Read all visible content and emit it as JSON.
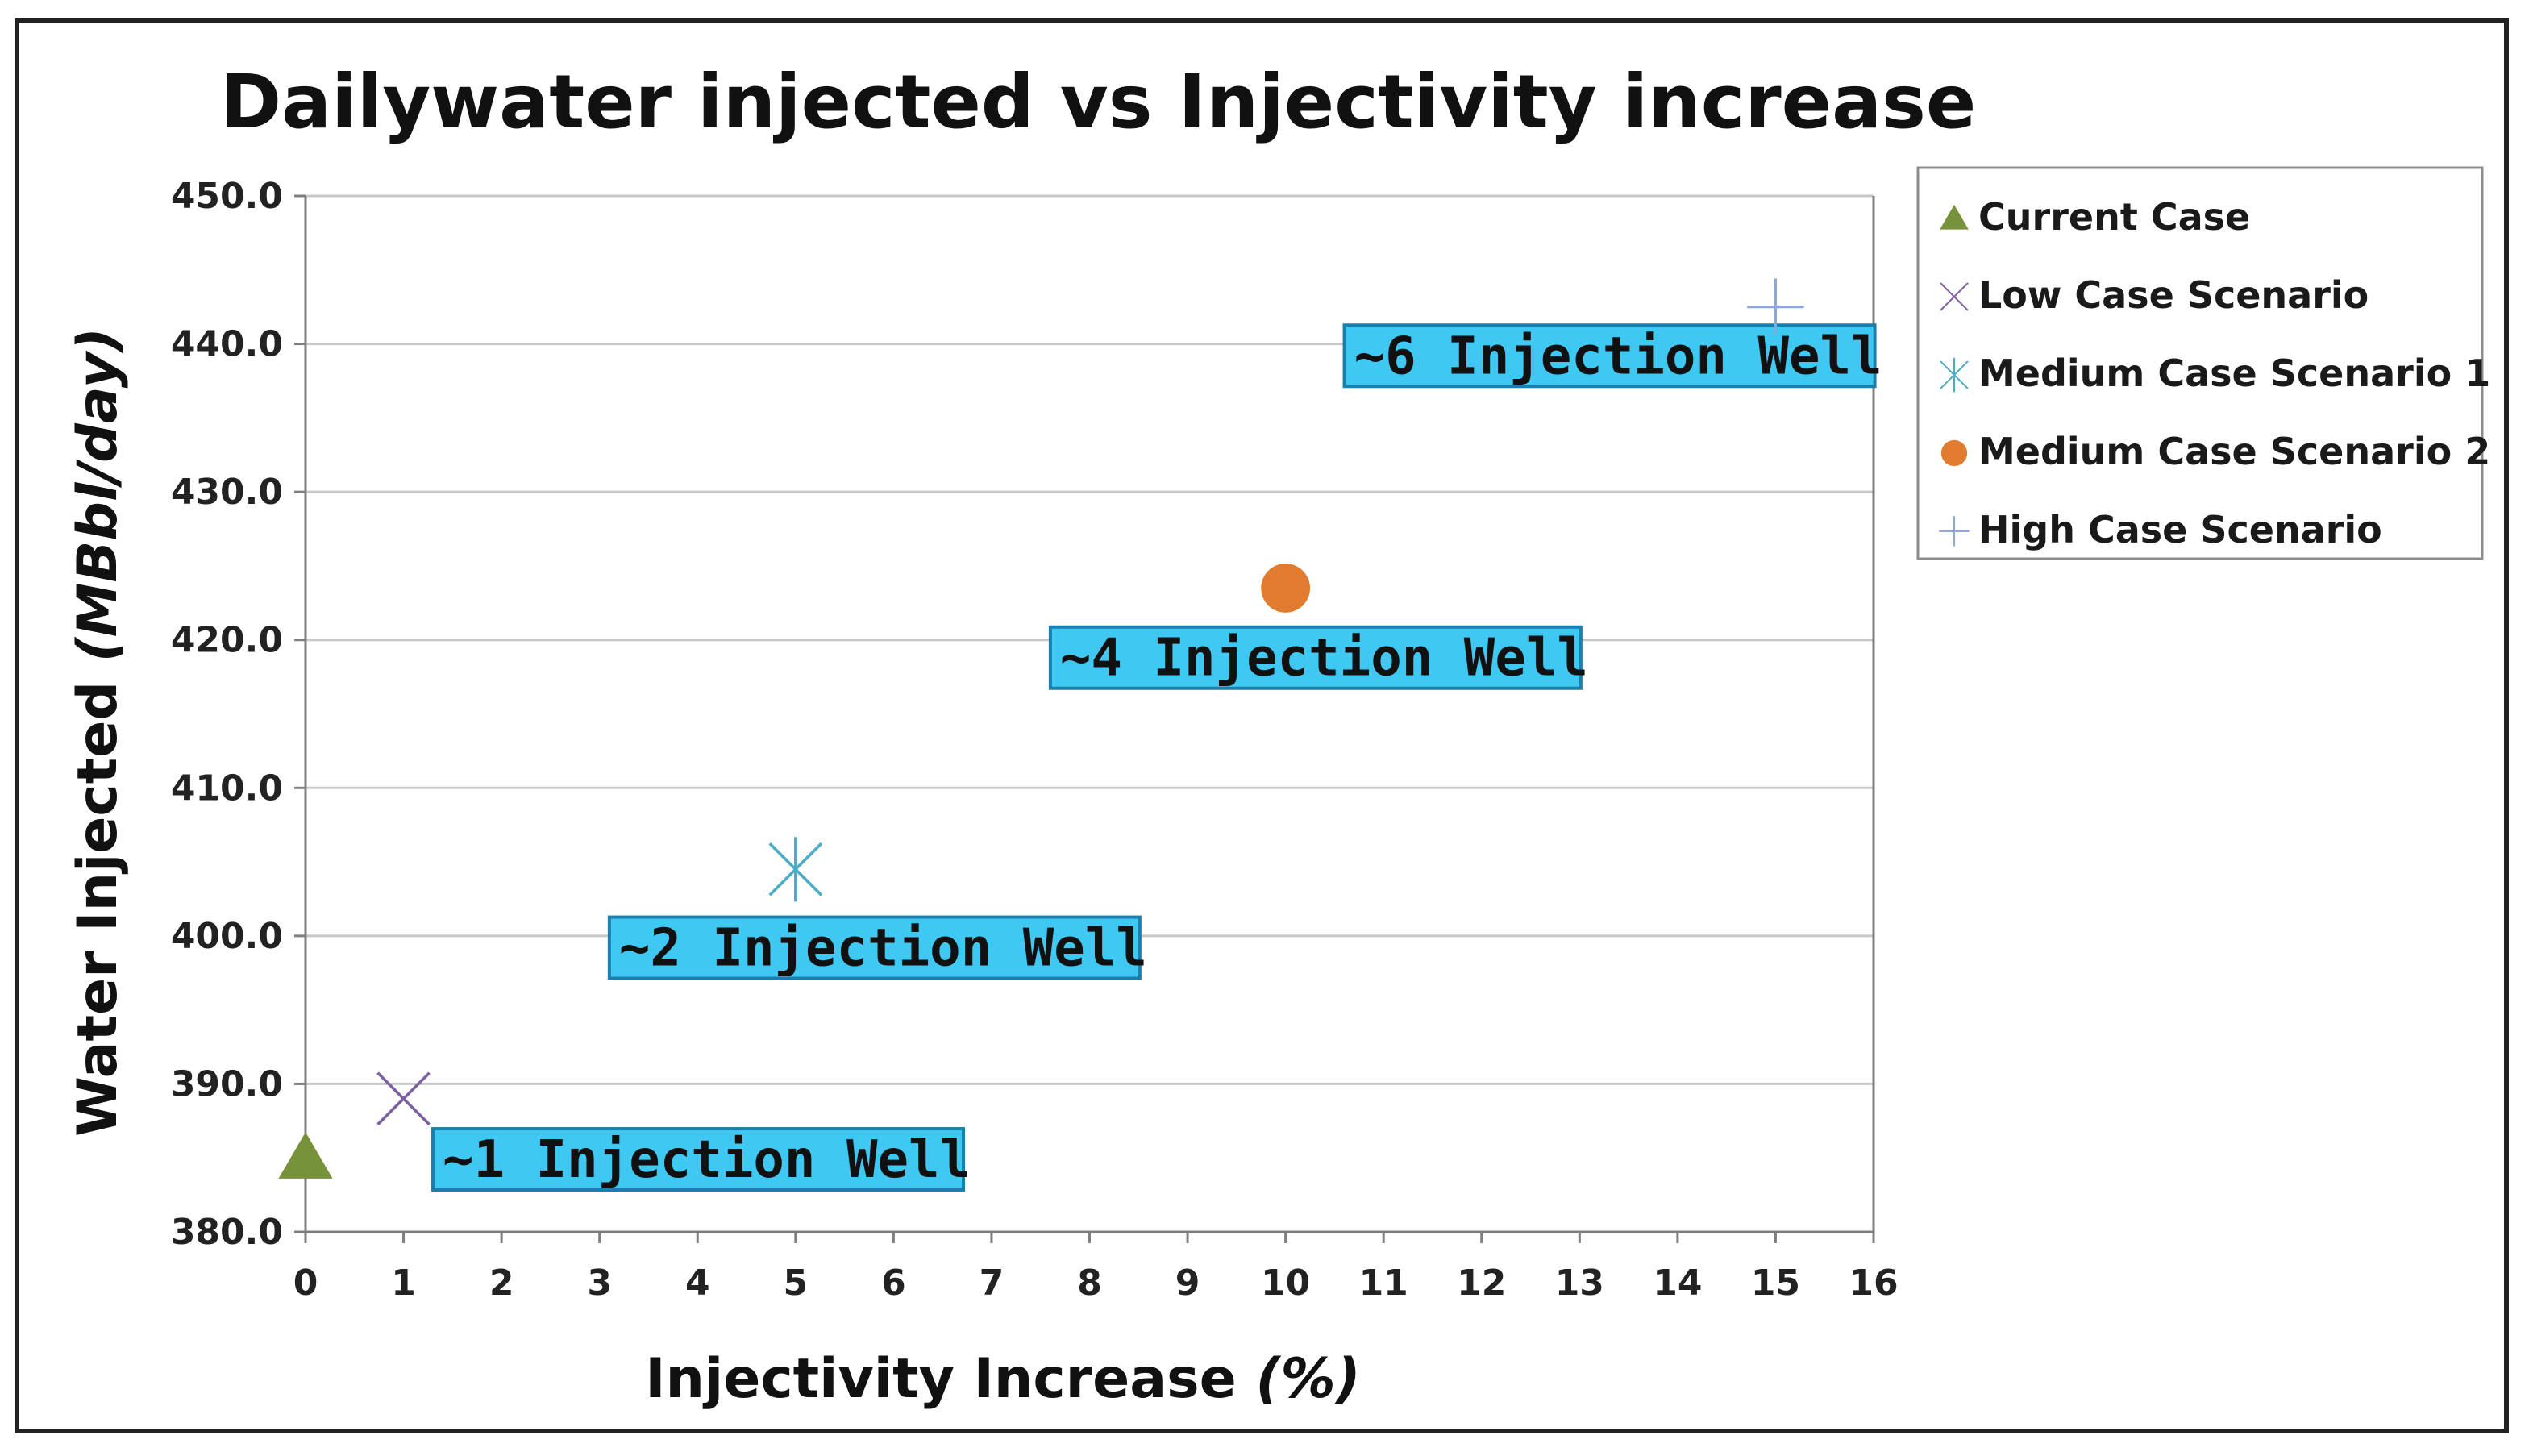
{
  "chart_data": {
    "type": "scatter",
    "title": "Dailywater injected vs Injectivity increase",
    "xlabel": "Injectivity Increase",
    "xlabel_unit": "(%)",
    "ylabel": "Water Injected",
    "ylabel_unit": "(MBbl/day)",
    "xlim": [
      0,
      16
    ],
    "ylim": [
      380,
      450
    ],
    "xticks": [
      0,
      1,
      2,
      3,
      4,
      5,
      6,
      7,
      8,
      9,
      10,
      11,
      12,
      13,
      14,
      15,
      16
    ],
    "yticks": [
      380,
      390,
      400,
      410,
      420,
      430,
      440,
      450
    ],
    "ytick_labels": [
      "380.0",
      "390.0",
      "400.0",
      "410.0",
      "420.0",
      "430.0",
      "440.0",
      "450.0"
    ],
    "grid": "horizontal",
    "legend_position": "right",
    "series": [
      {
        "name": "Current Case",
        "marker": "triangle",
        "color": "#76933c",
        "x": 0,
        "y": 385
      },
      {
        "name": "Low Case Scenario",
        "marker": "x",
        "color": "#7e5fa0",
        "x": 1,
        "y": 389
      },
      {
        "name": "Medium Case Scenario 1",
        "marker": "star",
        "color": "#4bacc6",
        "x": 5,
        "y": 404.5
      },
      {
        "name": "Medium Case Scenario 2",
        "marker": "circle",
        "color": "#e07b30",
        "x": 10,
        "y": 423.5
      },
      {
        "name": "High Case Scenario",
        "marker": "plus",
        "color": "#8ca7d8",
        "x": 15,
        "y": 442.5
      }
    ],
    "annotations": [
      {
        "text": "~1 Injection Well",
        "x": 1.3,
        "y": 384.9
      },
      {
        "text": "~2 Injection Well",
        "x": 3.1,
        "y": 399.2
      },
      {
        "text": "~4 Injection Well",
        "x": 7.6,
        "y": 418.8
      },
      {
        "text": "~6 Injection Well",
        "x": 10.6,
        "y": 439.2
      }
    ]
  },
  "colors": {
    "callout_fill": "#3fc8f2",
    "callout_border": "#1b7fae",
    "grid": "#c8c8c8",
    "axis": "#7f7f7f"
  }
}
